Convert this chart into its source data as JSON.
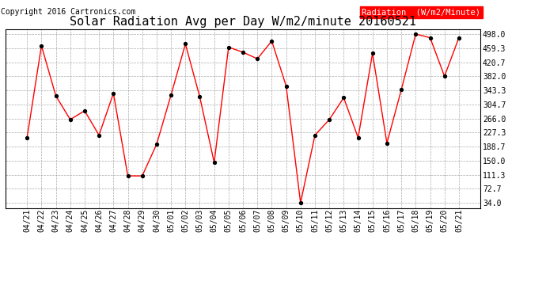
{
  "title": "Solar Radiation Avg per Day W/m2/minute 20160521",
  "copyright": "Copyright 2016 Cartronics.com",
  "legend_label": "Radiation  (W/m2/Minute)",
  "dates": [
    "04/21",
    "04/22",
    "04/23",
    "04/24",
    "04/25",
    "04/26",
    "04/27",
    "04/28",
    "04/29",
    "04/30",
    "05/01",
    "05/02",
    "05/03",
    "05/04",
    "05/05",
    "05/06",
    "05/07",
    "05/08",
    "05/09",
    "05/10",
    "05/11",
    "05/12",
    "05/13",
    "05/14",
    "05/15",
    "05/16",
    "05/17",
    "05/18",
    "05/19",
    "05/20",
    "05/21"
  ],
  "values": [
    213.0,
    466.0,
    328.0,
    263.0,
    287.0,
    220.0,
    335.0,
    108.0,
    108.0,
    195.0,
    330.0,
    471.0,
    325.0,
    145.0,
    462.0,
    448.0,
    430.0,
    479.0,
    355.0,
    34.0,
    220.0,
    263.0,
    323.0,
    213.0,
    445.0,
    198.0,
    345.0,
    498.0,
    488.0,
    382.0,
    488.0
  ],
  "line_color": "red",
  "marker_color": "black",
  "background_color": "#ffffff",
  "grid_color": "#aaaaaa",
  "yticks": [
    34.0,
    72.7,
    111.3,
    150.0,
    188.7,
    227.3,
    266.0,
    304.7,
    343.3,
    382.0,
    420.7,
    459.3,
    498.0
  ],
  "ytick_labels": [
    "34.0",
    "72.7",
    "111.3",
    "150.0",
    "188.7",
    "227.3",
    "266.0",
    "304.7",
    "343.3",
    "382.0",
    "420.7",
    "459.3",
    "498.0"
  ],
  "ymin": 20.0,
  "ymax": 510.0,
  "legend_bg": "red",
  "legend_text_color": "white",
  "title_fontsize": 11,
  "copyright_fontsize": 7,
  "tick_fontsize": 7,
  "legend_fontsize": 7.5
}
